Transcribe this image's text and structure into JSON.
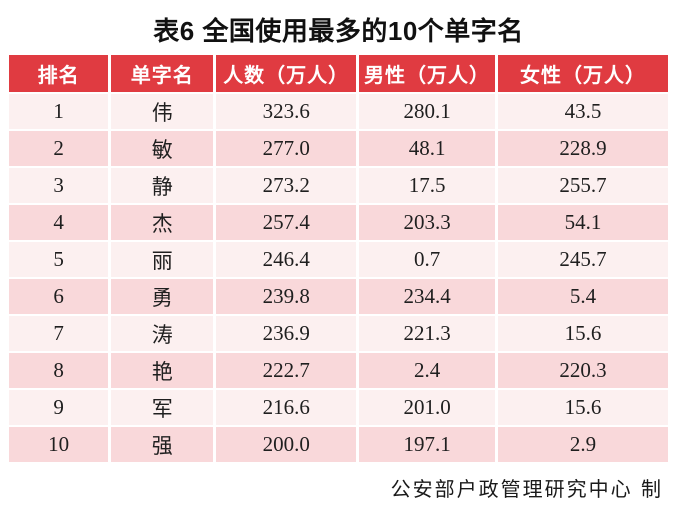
{
  "title": "表6  全国使用最多的10个单字名",
  "table": {
    "columns": [
      "排名",
      "单字名",
      "人数（万人）",
      "男性（万人）",
      "女性（万人）"
    ],
    "rows": [
      [
        "1",
        "伟",
        "323.6",
        "280.1",
        "43.5"
      ],
      [
        "2",
        "敏",
        "277.0",
        "48.1",
        "228.9"
      ],
      [
        "3",
        "静",
        "273.2",
        "17.5",
        "255.7"
      ],
      [
        "4",
        "杰",
        "257.4",
        "203.3",
        "54.1"
      ],
      [
        "5",
        "丽",
        "246.4",
        "0.7",
        "245.7"
      ],
      [
        "6",
        "勇",
        "239.8",
        "234.4",
        "5.4"
      ],
      [
        "7",
        "涛",
        "236.9",
        "221.3",
        "15.6"
      ],
      [
        "8",
        "艳",
        "222.7",
        "2.4",
        "220.3"
      ],
      [
        "9",
        "军",
        "216.6",
        "201.0",
        "15.6"
      ],
      [
        "10",
        "强",
        "200.0",
        "197.1",
        "2.9"
      ]
    ]
  },
  "footer": "公安部户政管理研究中心 制",
  "colors": {
    "header_bg": "#e03b41",
    "header_text": "#ffffff",
    "row_light": "#fcf0f0",
    "row_dark": "#f9d8da",
    "body_text": "#1f1f1f"
  },
  "chart_data": {
    "type": "table",
    "title": "表6 全国使用最多的10个单字名",
    "columns": [
      "排名",
      "单字名",
      "人数（万人）",
      "男性（万人）",
      "女性（万人）"
    ],
    "rows": [
      [
        1,
        "伟",
        323.6,
        280.1,
        43.5
      ],
      [
        2,
        "敏",
        277.0,
        48.1,
        228.9
      ],
      [
        3,
        "静",
        273.2,
        17.5,
        255.7
      ],
      [
        4,
        "杰",
        257.4,
        203.3,
        54.1
      ],
      [
        5,
        "丽",
        246.4,
        0.7,
        245.7
      ],
      [
        6,
        "勇",
        239.8,
        234.4,
        5.4
      ],
      [
        7,
        "涛",
        236.9,
        221.3,
        15.6
      ],
      [
        8,
        "艳",
        222.7,
        2.4,
        220.3
      ],
      [
        9,
        "军",
        216.6,
        201.0,
        15.6
      ],
      [
        10,
        "强",
        200.0,
        197.1,
        2.9
      ]
    ],
    "source": "公安部户政管理研究中心 制"
  }
}
